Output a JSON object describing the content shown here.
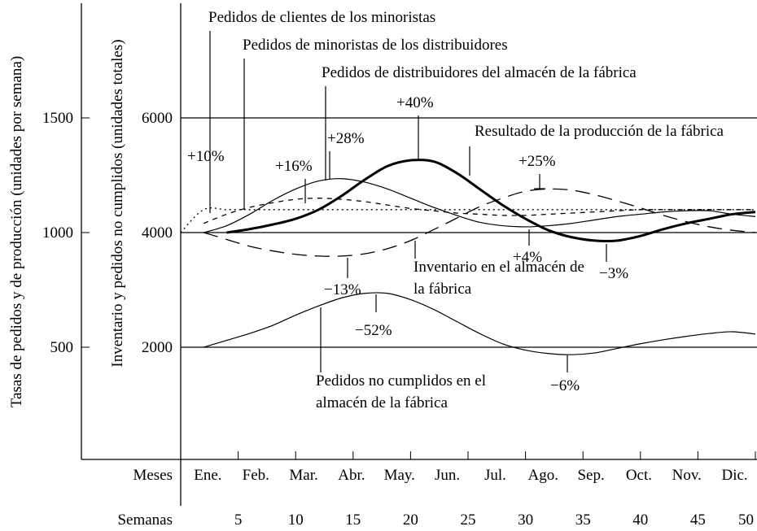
{
  "chart_data": {
    "type": "line",
    "y_label": "Tasas de pedidos y de producción (unidades por semana)",
    "y2_label": "Inventario y pedidos no cumplidos (unidades totales)",
    "month_label": "Meses",
    "months": [
      "Ene.",
      "Feb.",
      "Mar.",
      "Abr.",
      "May.",
      "Jun.",
      "Jul.",
      "Ago.",
      "Sep.",
      "Oct.",
      "Nov.",
      "Dic."
    ],
    "x_label": "Semanas",
    "x": [
      0,
      2,
      4,
      6,
      8,
      10,
      12,
      14,
      16,
      18,
      20,
      22,
      24,
      26,
      28,
      30,
      32,
      34,
      36,
      38,
      40,
      42,
      44,
      46,
      48,
      50
    ],
    "xlim": [
      0,
      50
    ],
    "xticks": [
      5,
      10,
      15,
      20,
      25,
      30,
      35,
      40,
      45,
      50
    ],
    "ylim": [
      0,
      2000
    ],
    "yticks": [
      500,
      1000,
      1500
    ],
    "y2lim": [
      0,
      8000
    ],
    "y2ticks": [
      2000,
      4000,
      6000
    ],
    "grid": true,
    "series": [
      {
        "name": "Pedidos de clientes de los minoristas",
        "color": "#000000",
        "style": "dotted",
        "axis": "y",
        "values": [
          1000,
          1100,
          1100,
          1100,
          1100,
          1100,
          1100,
          1100,
          1100,
          1100,
          1100,
          1100,
          1100,
          1100,
          1100,
          1100,
          1100,
          1100,
          1100,
          1100,
          1100,
          1100,
          1100,
          1100,
          1100,
          1100
        ]
      },
      {
        "name": "Pedidos de minoristas de los distribuidores",
        "color": "#000000",
        "style": "dashed",
        "axis": "y",
        "values": [
          null,
          1040,
          1080,
          1110,
          1130,
          1145,
          1150,
          1145,
          1135,
          1120,
          1105,
          1095,
          1085,
          1080,
          1075,
          1075,
          1080,
          1085,
          1090,
          1095,
          1100,
          1100,
          1100,
          1100,
          1100,
          1100
        ]
      },
      {
        "name": "Pedidos de distribuidores del almacén de la fábrica",
        "color": "#000000",
        "style": "solid",
        "axis": "y",
        "values": [
          null,
          1000,
          1030,
          1080,
          1140,
          1190,
          1225,
          1235,
          1220,
          1190,
          1150,
          1110,
          1075,
          1045,
          1030,
          1025,
          1030,
          1040,
          1055,
          1070,
          1080,
          1090,
          1095,
          1095,
          1080,
          1070
        ]
      },
      {
        "name": "Resultado de la producción de la fábrica",
        "color": "#000000",
        "style": "thick",
        "axis": "y",
        "values": [
          null,
          null,
          1000,
          1015,
          1035,
          1060,
          1100,
          1160,
          1230,
          1290,
          1315,
          1310,
          1260,
          1190,
          1120,
          1060,
          1010,
          980,
          965,
          965,
          985,
          1015,
          1040,
          1060,
          1080,
          1090
        ]
      },
      {
        "name": "Inventario en el almacén de la fábrica",
        "color": "#000000",
        "style": "longdash",
        "axis": "y2",
        "values": [
          null,
          4000,
          3880,
          3760,
          3680,
          3620,
          3590,
          3590,
          3630,
          3720,
          3860,
          4050,
          4250,
          4450,
          4600,
          4720,
          4760,
          4740,
          4660,
          4550,
          4430,
          4300,
          4190,
          4100,
          4040,
          4000
        ]
      },
      {
        "name": "Pedidos no cumplidos en el almacén de la fábrica",
        "color": "#000000",
        "style": "solid",
        "axis": "y2",
        "values": [
          null,
          2000,
          2120,
          2240,
          2380,
          2560,
          2720,
          2860,
          2940,
          2940,
          2830,
          2660,
          2450,
          2240,
          2060,
          1950,
          1890,
          1870,
          1900,
          1980,
          2060,
          2130,
          2190,
          2240,
          2270,
          2230
        ]
      }
    ],
    "annotations": [
      "+10%",
      "+16%",
      "+28%",
      "+40%",
      "+25%",
      "+4%",
      "−3%",
      "−13%",
      "−52%",
      "−6%"
    ]
  }
}
